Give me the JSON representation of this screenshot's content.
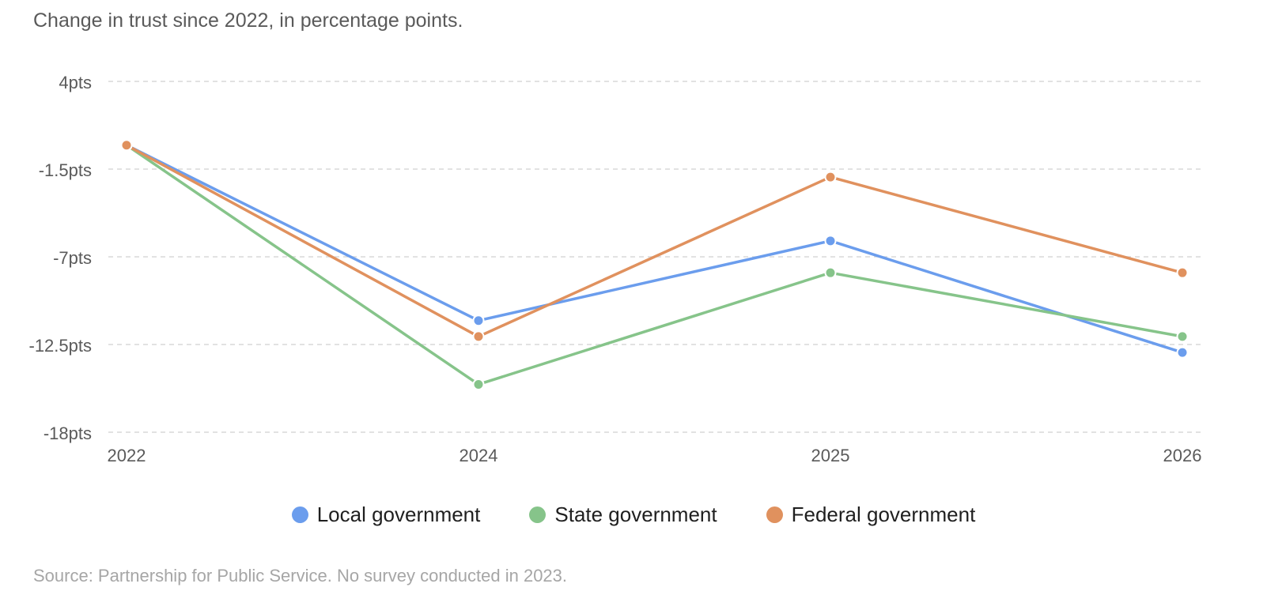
{
  "subtitle": "Change in trust since 2022, in percentage points.",
  "source": "Source: Partnership for Public Service. No survey conducted in 2023.",
  "chart_data": {
    "type": "line",
    "categories": [
      "2022",
      "2024",
      "2025",
      "2026"
    ],
    "y_ticks": [
      4,
      -1.5,
      -7,
      -12.5,
      -18
    ],
    "y_tick_labels": [
      "4pts",
      "-1.5pts",
      "-7pts",
      "-12.5pts",
      "-18pts"
    ],
    "ylim": [
      -18,
      4
    ],
    "grid": "horizontal-dashed",
    "legend_position": "bottom",
    "series": [
      {
        "name": "Local government",
        "color": "#6b9ded",
        "values": [
          0,
          -11,
          -6,
          -13
        ]
      },
      {
        "name": "State government",
        "color": "#86c48a",
        "values": [
          0,
          -15,
          -8,
          -12
        ]
      },
      {
        "name": "Federal government",
        "color": "#e0915e",
        "values": [
          0,
          -12,
          -2,
          -8
        ]
      }
    ]
  }
}
